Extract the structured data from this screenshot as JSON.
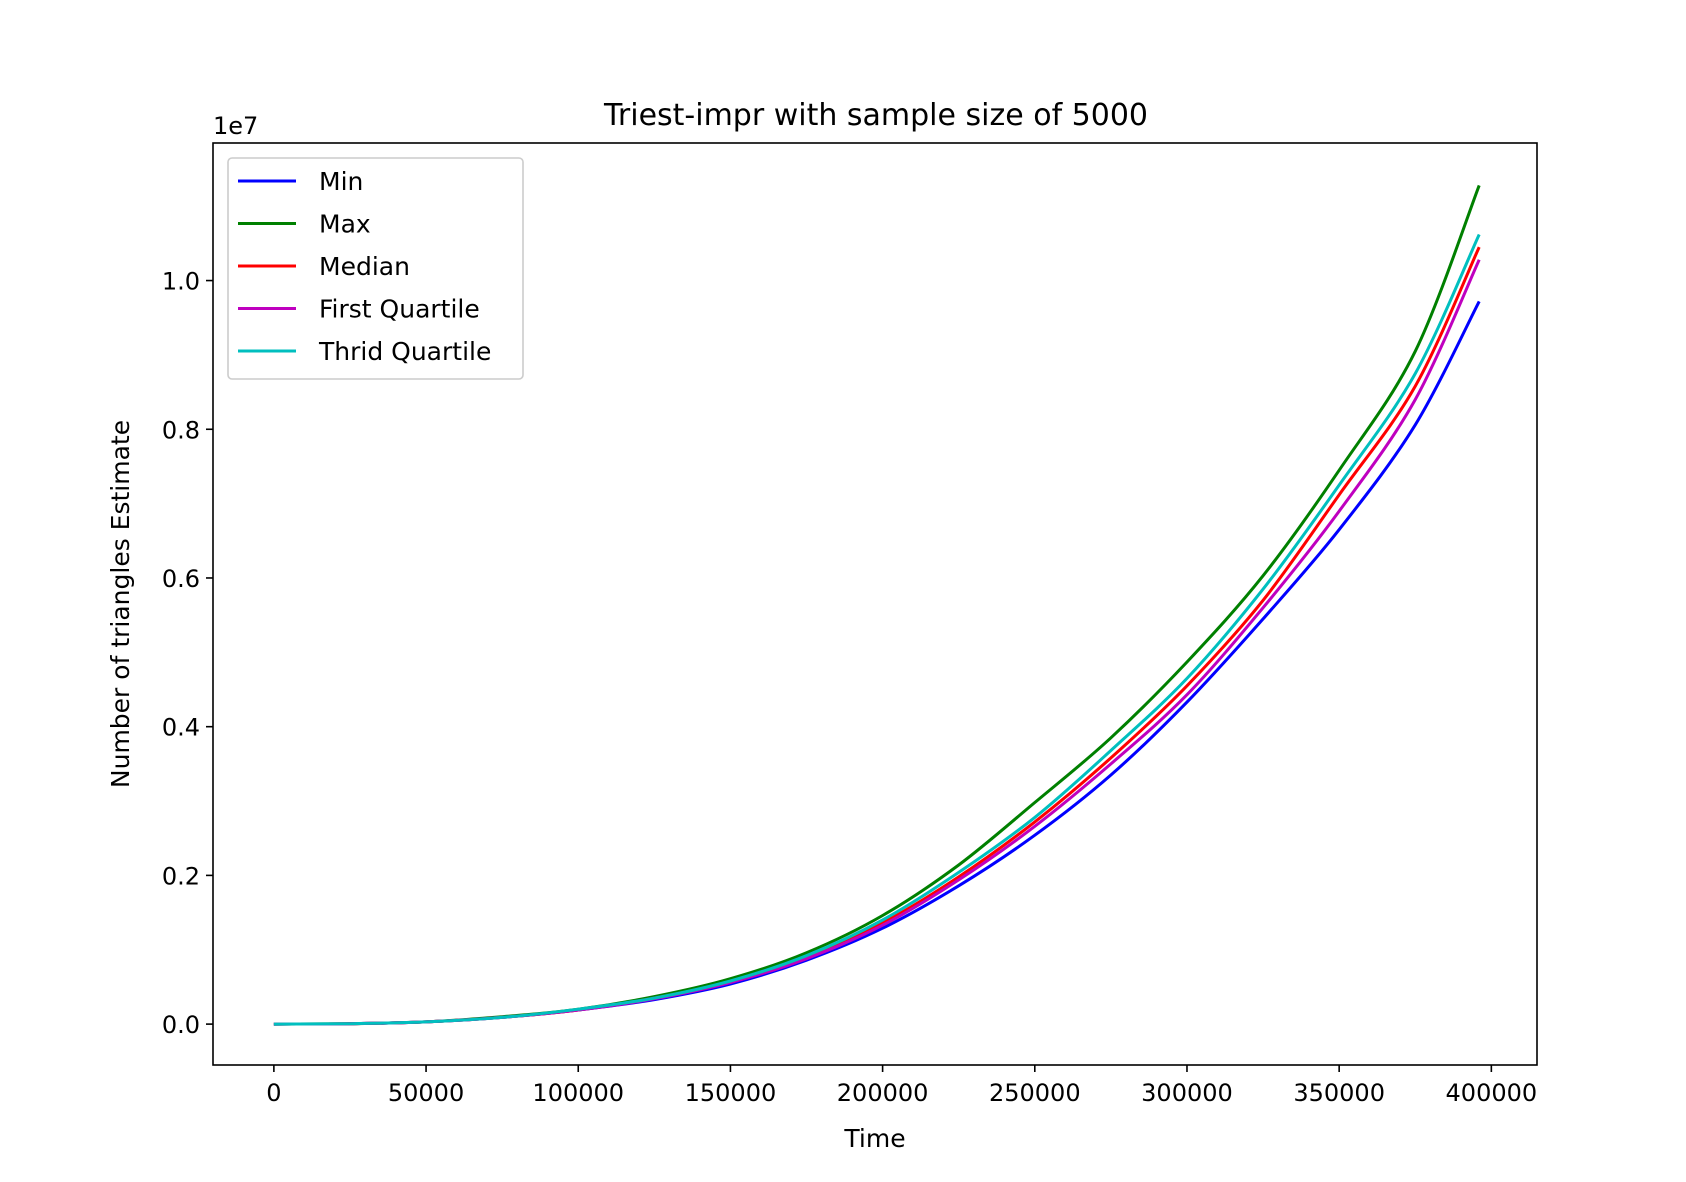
{
  "chart_data": {
    "type": "line",
    "title": "Triest-impr with sample size of 5000",
    "xlabel": "Time",
    "ylabel": "Number of triangles Estimate",
    "y_offset_label": "1e7",
    "xlim": [
      -20000,
      415000
    ],
    "ylim": [
      -0.055,
      1.185
    ],
    "x_ticks": [
      0,
      50000,
      100000,
      150000,
      200000,
      250000,
      300000,
      350000,
      400000
    ],
    "x_tick_labels": [
      "0",
      "50000",
      "100000",
      "150000",
      "200000",
      "250000",
      "300000",
      "350000",
      "400000"
    ],
    "y_ticks": [
      0.0,
      0.2,
      0.4,
      0.6,
      0.8,
      1.0
    ],
    "y_tick_labels": [
      "0.0",
      "0.2",
      "0.4",
      "0.6",
      "0.8",
      "1.0"
    ],
    "grid": false,
    "legend_position": "top-left",
    "x": [
      0,
      25000,
      50000,
      75000,
      100000,
      125000,
      150000,
      175000,
      200000,
      225000,
      250000,
      275000,
      300000,
      325000,
      350000,
      375000,
      396000
    ],
    "series": [
      {
        "name": "Min",
        "color": "#0000ff",
        "values": [
          0.0,
          0.0005,
          0.003,
          0.009,
          0.019,
          0.033,
          0.054,
          0.086,
          0.129,
          0.186,
          0.254,
          0.335,
          0.433,
          0.545,
          0.665,
          0.806,
          0.972
        ]
      },
      {
        "name": "Max",
        "color": "#008000",
        "values": [
          0.0,
          0.0006,
          0.003,
          0.01,
          0.02,
          0.037,
          0.061,
          0.096,
          0.146,
          0.214,
          0.298,
          0.385,
          0.487,
          0.603,
          0.745,
          0.905,
          1.128
        ]
      },
      {
        "name": "Median",
        "color": "#ff0000",
        "values": [
          0.0,
          0.0005,
          0.003,
          0.009,
          0.019,
          0.035,
          0.057,
          0.09,
          0.136,
          0.198,
          0.272,
          0.358,
          0.455,
          0.57,
          0.712,
          0.858,
          1.045
        ]
      },
      {
        "name": "First Quartile",
        "color": "#bf00bf",
        "values": [
          0.0,
          0.0005,
          0.003,
          0.009,
          0.019,
          0.034,
          0.056,
          0.088,
          0.133,
          0.194,
          0.266,
          0.35,
          0.443,
          0.56,
          0.69,
          0.84,
          1.028
        ]
      },
      {
        "name": "Thrid Quartile",
        "color": "#00bfbf",
        "values": [
          0.0,
          0.0006,
          0.003,
          0.009,
          0.02,
          0.035,
          0.058,
          0.092,
          0.14,
          0.204,
          0.278,
          0.368,
          0.465,
          0.585,
          0.725,
          0.875,
          1.062
        ]
      }
    ]
  }
}
